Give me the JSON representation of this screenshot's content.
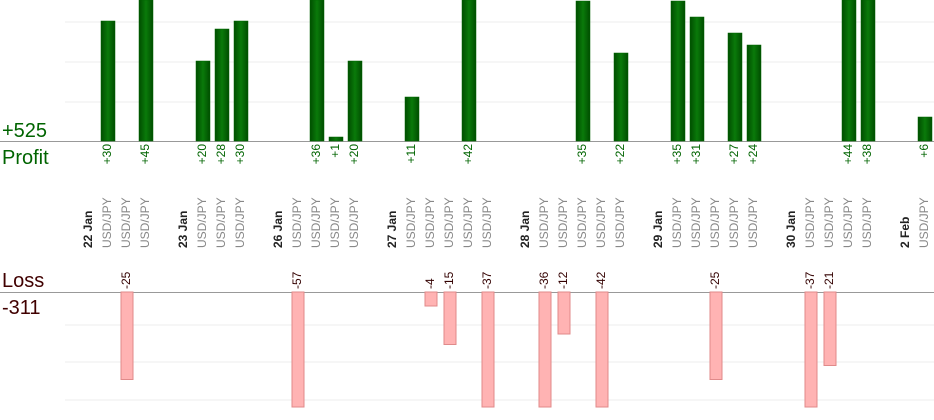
{
  "chart_data": {
    "type": "bar",
    "profit_total": "+525",
    "profit_label": "Profit",
    "loss_label": "Loss",
    "loss_total": "-311",
    "profit_color": "#006400",
    "loss_color": "#ffb3b3",
    "groups": [
      {
        "date": "22 Jan",
        "trades": [
          {
            "pair": "USD/JPY",
            "value": 30,
            "value_label": "+30"
          },
          {
            "pair": "USD/JPY",
            "value": -25,
            "value_label": "-25"
          },
          {
            "pair": "USD/JPY",
            "value": 45,
            "value_label": "+45"
          }
        ]
      },
      {
        "date": "23 Jan",
        "trades": [
          {
            "pair": "USD/JPY",
            "value": 20,
            "value_label": "+20"
          },
          {
            "pair": "USD/JPY",
            "value": 28,
            "value_label": "+28"
          },
          {
            "pair": "USD/JPY",
            "value": 30,
            "value_label": "+30"
          }
        ]
      },
      {
        "date": "26 Jan",
        "trades": [
          {
            "pair": "USD/JPY",
            "value": -57,
            "value_label": "-57"
          },
          {
            "pair": "USD/JPY",
            "value": 36,
            "value_label": "+36"
          },
          {
            "pair": "USD/JPY",
            "value": 1,
            "value_label": "+1"
          },
          {
            "pair": "USD/JPY",
            "value": 20,
            "value_label": "+20"
          }
        ]
      },
      {
        "date": "27 Jan",
        "trades": [
          {
            "pair": "USD/JPY",
            "value": 11,
            "value_label": "+11"
          },
          {
            "pair": "USD/JPY",
            "value": -4,
            "value_label": "-4"
          },
          {
            "pair": "USD/JPY",
            "value": -15,
            "value_label": "-15"
          },
          {
            "pair": "USD/JPY",
            "value": 42,
            "value_label": "+42"
          },
          {
            "pair": "USD/JPY",
            "value": -37,
            "value_label": "-37"
          }
        ]
      },
      {
        "date": "28 Jan",
        "trades": [
          {
            "pair": "USD/JPY",
            "value": -36,
            "value_label": "-36"
          },
          {
            "pair": "USD/JPY",
            "value": -12,
            "value_label": "-12"
          },
          {
            "pair": "USD/JPY",
            "value": 35,
            "value_label": "+35"
          },
          {
            "pair": "USD/JPY",
            "value": -42,
            "value_label": "-42"
          },
          {
            "pair": "USD/JPY",
            "value": 22,
            "value_label": "+22"
          }
        ]
      },
      {
        "date": "29 Jan",
        "trades": [
          {
            "pair": "USD/JPY",
            "value": 35,
            "value_label": "+35"
          },
          {
            "pair": "USD/JPY",
            "value": 31,
            "value_label": "+31"
          },
          {
            "pair": "USD/JPY",
            "value": -25,
            "value_label": "-25"
          },
          {
            "pair": "USD/JPY",
            "value": 27,
            "value_label": "+27"
          },
          {
            "pair": "USD/JPY",
            "value": 24,
            "value_label": "+24"
          }
        ]
      },
      {
        "date": "30 Jan",
        "trades": [
          {
            "pair": "USD/JPY",
            "value": -37,
            "value_label": "-37"
          },
          {
            "pair": "USD/JPY",
            "value": -21,
            "value_label": "-21"
          },
          {
            "pair": "USD/JPY",
            "value": 44,
            "value_label": "+44"
          },
          {
            "pair": "USD/JPY",
            "value": 38,
            "value_label": "+38"
          }
        ]
      },
      {
        "date": "2 Feb",
        "trades": [
          {
            "pair": "USD/JPY",
            "value": 6,
            "value_label": "+6"
          }
        ]
      }
    ]
  }
}
